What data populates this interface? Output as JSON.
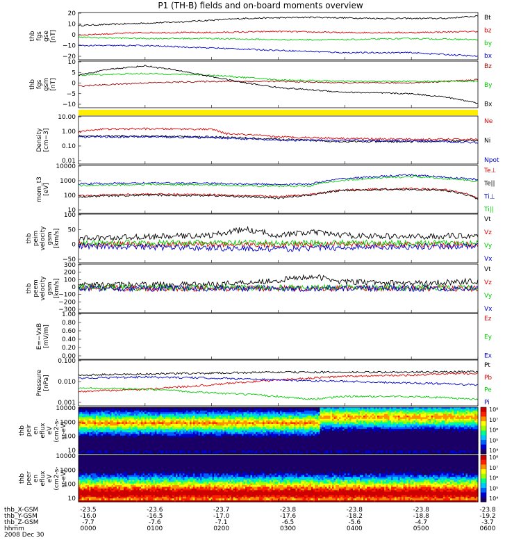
{
  "title": "P1 (TH-B) fields and on-board moments overview",
  "footer": {
    "rows": [
      {
        "label": "thb_X-GSM",
        "values": [
          "-23.5",
          "-23.6",
          "-23.7",
          "-23.8",
          "-23.8",
          "-23.8",
          "-23.8"
        ]
      },
      {
        "label": "thb_Y-GSM",
        "values": [
          "-16.0",
          "-16.5",
          "-17.0",
          "-17.6",
          "-18.2",
          "-18.8",
          "-19.2"
        ]
      },
      {
        "label": "thb_Z-GSM",
        "values": [
          "-7.7",
          "-7.6",
          "-7.1",
          "-6.5",
          "-5.6",
          "-4.7",
          "-3.7"
        ]
      },
      {
        "label": "hhmm",
        "values": [
          "0000",
          "0100",
          "0200",
          "0300",
          "0400",
          "0500",
          "0600"
        ]
      }
    ],
    "date": "2008 Dec 30"
  },
  "chart_data": [
    {
      "type": "line",
      "ylabel": [
        "thb",
        "fgs",
        "gse",
        "[nT]"
      ],
      "ylim": [
        -20,
        20
      ],
      "ytick_labels": [
        "20",
        "10",
        "0",
        "−10",
        "−20"
      ],
      "series": [
        {
          "name": "Bt",
          "color": "#000000",
          "keyframes": [
            [
              0,
              9
            ],
            [
              0.5,
              10
            ],
            [
              1.5,
              12
            ],
            [
              2.5,
              15
            ],
            [
              3.5,
              16
            ],
            [
              4.5,
              15
            ],
            [
              5.5,
              15
            ],
            [
              6,
              17
            ]
          ]
        },
        {
          "name": "bz",
          "color": "#dd0000",
          "keyframes": [
            [
              0,
              1
            ],
            [
              1,
              3
            ],
            [
              2,
              3
            ],
            [
              3,
              4
            ],
            [
              4,
              3
            ],
            [
              5,
              3
            ],
            [
              6,
              4
            ]
          ]
        },
        {
          "name": "by",
          "color": "#00cc00",
          "keyframes": [
            [
              0,
              -1
            ],
            [
              1,
              -2
            ],
            [
              2,
              -2
            ],
            [
              3,
              -3
            ],
            [
              4,
              -3
            ],
            [
              5,
              -2
            ],
            [
              6,
              -3
            ]
          ]
        },
        {
          "name": "bx",
          "color": "#0000cc",
          "keyframes": [
            [
              0,
              -8
            ],
            [
              1,
              -8
            ],
            [
              2,
              -10
            ],
            [
              3,
              -12
            ],
            [
              4,
              -14
            ],
            [
              5,
              -14
            ],
            [
              6,
              -17
            ]
          ]
        }
      ]
    },
    {
      "type": "line",
      "ylabel": [
        "thb",
        "fgs",
        "gsm",
        "[nT]"
      ],
      "ylim": [
        -15,
        15
      ],
      "ytick_labels": [
        "10",
        "5",
        "0",
        "−5",
        "−10"
      ],
      "series": [
        {
          "name": "Bz",
          "color": "#990000",
          "keyframes": [
            [
              0,
              -1
            ],
            [
              1,
              1
            ],
            [
              2,
              2
            ],
            [
              3,
              2
            ],
            [
              4,
              1
            ],
            [
              5,
              1
            ],
            [
              6,
              3
            ]
          ]
        },
        {
          "name": "By",
          "color": "#00cc00",
          "keyframes": [
            [
              0,
              6
            ],
            [
              1,
              7
            ],
            [
              2,
              6
            ],
            [
              3,
              3
            ],
            [
              4,
              2
            ],
            [
              5,
              2
            ],
            [
              6,
              2
            ]
          ]
        },
        {
          "name": "Bx",
          "color": "#000000",
          "keyframes": [
            [
              0,
              6
            ],
            [
              0.5,
              10
            ],
            [
              1,
              12
            ],
            [
              1.5,
              9
            ],
            [
              2,
              5
            ],
            [
              2.5,
              1
            ],
            [
              3,
              -2
            ],
            [
              4,
              -5
            ],
            [
              5,
              -6
            ],
            [
              5.5,
              -8
            ],
            [
              6,
              -12
            ]
          ]
        }
      ]
    },
    {
      "type": "line",
      "log": true,
      "ylabel": [
        "Density",
        "[cm−3]"
      ],
      "ylim": [
        0.01,
        10
      ],
      "ytick_labels": [
        "10.00",
        "1.00",
        "0.10",
        "0.01"
      ],
      "series": [
        {
          "name": "Ne",
          "color": "#dd0000",
          "keyframes": [
            [
              0,
              1.0
            ],
            [
              0.3,
              1.5
            ],
            [
              1,
              1.6
            ],
            [
              2,
              1.5
            ],
            [
              2.2,
              0.8
            ],
            [
              3,
              0.5
            ],
            [
              4,
              0.4
            ],
            [
              5,
              0.35
            ],
            [
              6,
              0.35
            ]
          ]
        },
        {
          "name": "Ni",
          "color": "#000000",
          "keyframes": [
            [
              0,
              0.55
            ],
            [
              1,
              0.55
            ],
            [
              2,
              0.5
            ],
            [
              3,
              0.35
            ],
            [
              4,
              0.25
            ],
            [
              5,
              0.25
            ],
            [
              6,
              0.3
            ]
          ]
        },
        {
          "name": "Npot",
          "color": "#0000cc",
          "keyframes": [
            [
              0,
              0.5
            ],
            [
              1,
              0.5
            ],
            [
              2,
              0.45
            ],
            [
              3,
              0.3
            ],
            [
              4,
              0.3
            ],
            [
              5,
              0.28
            ],
            [
              6,
              0.22
            ]
          ]
        }
      ]
    },
    {
      "type": "line",
      "log": true,
      "ylabel": [
        "mom_t3",
        "[eV]"
      ],
      "ylim": [
        10,
        10000
      ],
      "ytick_labels": [
        "10000",
        "1000",
        "100",
        "10"
      ],
      "series": [
        {
          "name": "Te⊥",
          "color": "#dd0000",
          "keyframes": [
            [
              0,
              130
            ],
            [
              1,
              160
            ],
            [
              2,
              150
            ],
            [
              3,
              110
            ],
            [
              3.5,
              150
            ],
            [
              4,
              300
            ],
            [
              5,
              350
            ],
            [
              5.5,
              300
            ],
            [
              6,
              90
            ]
          ]
        },
        {
          "name": "Te||",
          "color": "#000000",
          "keyframes": [
            [
              0,
              110
            ],
            [
              1,
              140
            ],
            [
              2,
              130
            ],
            [
              3,
              90
            ],
            [
              3.5,
              140
            ],
            [
              4,
              280
            ],
            [
              5,
              320
            ],
            [
              5.5,
              270
            ],
            [
              6,
              80
            ]
          ]
        },
        {
          "name": "Ti⊥",
          "color": "#0000cc",
          "keyframes": [
            [
              0,
              700
            ],
            [
              1,
              800
            ],
            [
              2,
              750
            ],
            [
              3,
              650
            ],
            [
              3.5,
              700
            ],
            [
              4,
              1500
            ],
            [
              5,
              2500
            ],
            [
              5.5,
              1800
            ],
            [
              6,
              1300
            ]
          ]
        },
        {
          "name": "Ti||",
          "color": "#00cc00",
          "keyframes": [
            [
              0,
              550
            ],
            [
              1,
              650
            ],
            [
              2,
              600
            ],
            [
              3,
              500
            ],
            [
              3.5,
              550
            ],
            [
              4,
              1200
            ],
            [
              5,
              2000
            ],
            [
              5.5,
              1500
            ],
            [
              6,
              1000
            ]
          ]
        }
      ]
    },
    {
      "type": "line",
      "ylabel": [
        "thb",
        "peim",
        "velocity",
        "gsm",
        "[km/s]"
      ],
      "ylim": [
        -60,
        100
      ],
      "ytick_labels": [
        "100",
        "50",
        "0",
        "−50"
      ],
      "series": [
        {
          "name": "Vt",
          "color": "#000000",
          "keyframes": [
            [
              0,
              20
            ],
            [
              1,
              25
            ],
            [
              2,
              30
            ],
            [
              2.5,
              50
            ],
            [
              3,
              30
            ],
            [
              3.5,
              40
            ],
            [
              4,
              30
            ],
            [
              5,
              25
            ],
            [
              6,
              30
            ]
          ]
        },
        {
          "name": "Vz",
          "color": "#dd0000",
          "keyframes": [
            [
              0,
              0
            ],
            [
              6,
              0
            ]
          ]
        },
        {
          "name": "Vy",
          "color": "#00cc00",
          "keyframes": [
            [
              0,
              5
            ],
            [
              6,
              5
            ]
          ]
        },
        {
          "name": "Vx",
          "color": "#0000cc",
          "keyframes": [
            [
              0,
              -5
            ],
            [
              3,
              -15
            ],
            [
              4,
              -10
            ],
            [
              6,
              -5
            ]
          ]
        }
      ]
    },
    {
      "type": "line",
      "ylabel": [
        "thb",
        "peem",
        "velocity",
        "gsm",
        "[km/s]"
      ],
      "ylim": [
        -300,
        300
      ],
      "ytick_labels": [
        "300",
        "200",
        "100",
        "0",
        "−100",
        "−200",
        "−300"
      ],
      "series": [
        {
          "name": "Vt",
          "color": "#000000",
          "keyframes": [
            [
              0,
              40
            ],
            [
              2,
              50
            ],
            [
              3,
              100
            ],
            [
              3.5,
              150
            ],
            [
              4,
              80
            ],
            [
              5,
              60
            ],
            [
              6,
              90
            ]
          ]
        },
        {
          "name": "Vz",
          "color": "#dd0000",
          "keyframes": [
            [
              0,
              0
            ],
            [
              6,
              0
            ]
          ]
        },
        {
          "name": "Vy",
          "color": "#00cc00",
          "keyframes": [
            [
              0,
              10
            ],
            [
              6,
              10
            ]
          ]
        },
        {
          "name": "Vx",
          "color": "#0000cc",
          "keyframes": [
            [
              0,
              0
            ],
            [
              6,
              0
            ]
          ]
        }
      ]
    },
    {
      "type": "line",
      "ylabel": [
        "E=−VxB",
        "[mV/m]"
      ],
      "ylim": [
        0,
        1
      ],
      "ytick_labels": [
        "1.00",
        "0.80",
        "0.60",
        "0.40",
        "0.20",
        "0.00"
      ],
      "series": [
        {
          "name": "Ez",
          "color": "#dd0000",
          "keyframes": []
        },
        {
          "name": "Ey",
          "color": "#00cc00",
          "keyframes": []
        },
        {
          "name": "Ex",
          "color": "#0000cc",
          "keyframes": []
        }
      ]
    },
    {
      "type": "line",
      "log": true,
      "ylabel": [
        "Pressure",
        "[nPa]"
      ],
      "ylim": [
        0.0008,
        0.5
      ],
      "ytick_labels": [
        "0.100",
        "0.010",
        "0.001"
      ],
      "series": [
        {
          "name": "Pt",
          "color": "#000000",
          "keyframes": [
            [
              0,
              0.06
            ],
            [
              1,
              0.07
            ],
            [
              2,
              0.08
            ],
            [
              3,
              0.09
            ],
            [
              4,
              0.09
            ],
            [
              5,
              0.09
            ],
            [
              6,
              0.1
            ]
          ]
        },
        {
          "name": "Pb",
          "color": "#dd0000",
          "keyframes": [
            [
              0,
              0.006
            ],
            [
              1,
              0.008
            ],
            [
              2,
              0.015
            ],
            [
              3,
              0.03
            ],
            [
              4,
              0.05
            ],
            [
              5,
              0.06
            ],
            [
              6,
              0.08
            ]
          ]
        },
        {
          "name": "Pe",
          "color": "#00cc00",
          "keyframes": [
            [
              0,
              0.01
            ],
            [
              1,
              0.008
            ],
            [
              2,
              0.005
            ],
            [
              3,
              0.003
            ],
            [
              3.5,
              0.002
            ],
            [
              4,
              0.003
            ],
            [
              5,
              0.003
            ],
            [
              6,
              0.002
            ]
          ]
        },
        {
          "name": "Pi",
          "color": "#0000cc",
          "keyframes": [
            [
              0,
              0.04
            ],
            [
              1,
              0.045
            ],
            [
              2,
              0.04
            ],
            [
              3,
              0.03
            ],
            [
              4,
              0.025
            ],
            [
              5,
              0.02
            ],
            [
              6,
              0.015
            ]
          ]
        }
      ]
    },
    {
      "type": "heatmap",
      "ylabel": [
        "thb",
        "peir",
        "en",
        "eflux",
        "eV",
        "(cm2-s-",
        "sr-eV)"
      ],
      "log": true,
      "ylim": [
        10,
        20000
      ],
      "ytick_labels": [
        "10000",
        "1000",
        "100",
        "10"
      ],
      "colorbar_labels": [
        "10⁸",
        "10⁷",
        "10⁶",
        "10⁵",
        "10⁴"
      ]
    },
    {
      "type": "heatmap",
      "ylabel": [
        "thb",
        "peer",
        "en",
        "eflux",
        "eV",
        "(cm2-s-",
        "sr-eV)"
      ],
      "log": true,
      "ylim": [
        10,
        20000
      ],
      "ytick_labels": [
        "10000",
        "1000",
        "100",
        "10"
      ],
      "colorbar_labels": [
        "10⁸",
        "10⁷",
        "10⁶",
        "10⁵",
        "10⁴"
      ]
    }
  ]
}
